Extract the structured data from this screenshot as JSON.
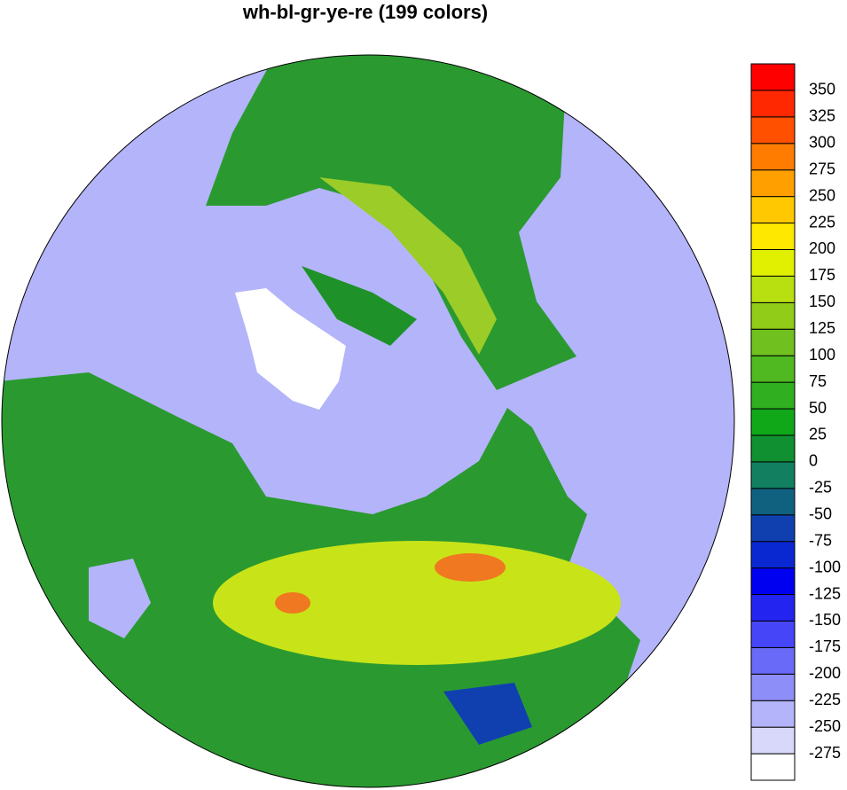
{
  "title": "wh-bl-gr-ye-re (199 colors)",
  "colorbar": {
    "levels": [
      -275,
      -250,
      -225,
      -200,
      -175,
      -150,
      -125,
      -100,
      -75,
      -50,
      -25,
      0,
      25,
      50,
      75,
      100,
      125,
      150,
      175,
      200,
      225,
      250,
      275,
      300,
      325,
      350
    ],
    "colors": [
      "#ffffff",
      "#d8d8fa",
      "#b4b4fa",
      "#8e8ef8",
      "#6a6af8",
      "#4646f8",
      "#2424f0",
      "#0000f0",
      "#0a28d2",
      "#1040b0",
      "#106080",
      "#128060",
      "#109030",
      "#10a818",
      "#30b020",
      "#50b820",
      "#70c020",
      "#90cc18",
      "#b8e010",
      "#e0f000",
      "#ffe800",
      "#ffc800",
      "#ffa000",
      "#ff7c00",
      "#ff5000",
      "#ff2800",
      "#ff0000"
    ]
  }
}
